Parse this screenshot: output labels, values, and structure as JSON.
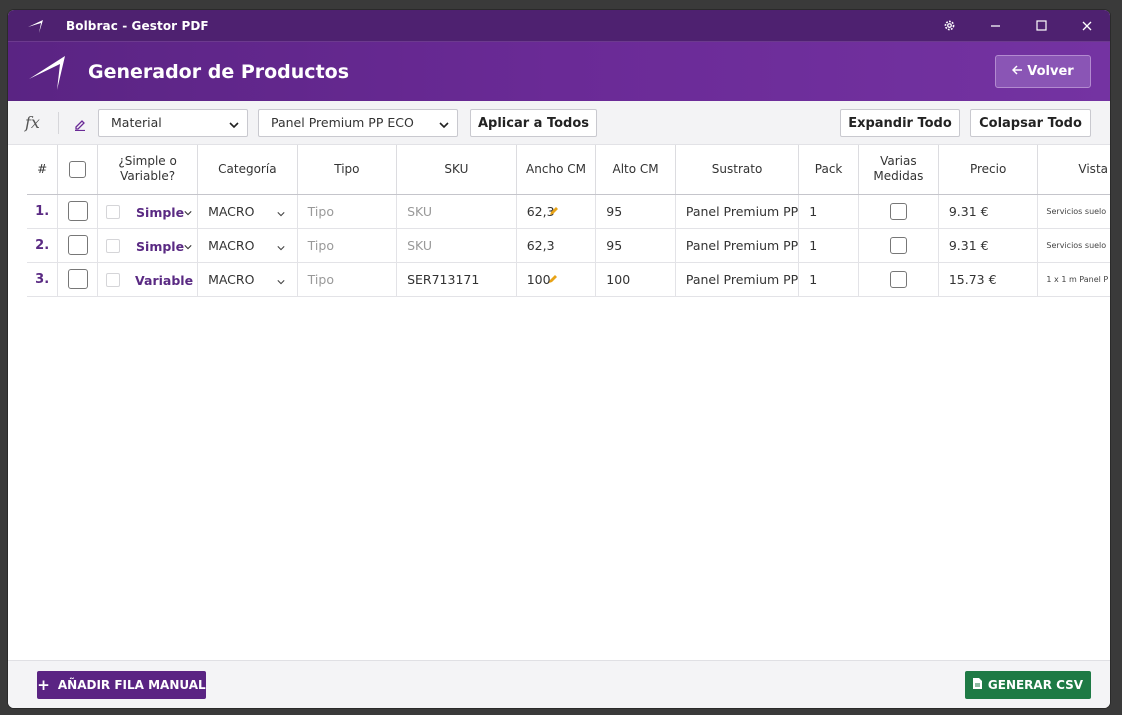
{
  "window": {
    "title": "Bolbrac - Gestor PDF"
  },
  "header": {
    "title": "Generador de Productos",
    "back_label": "Volver"
  },
  "toolbar": {
    "fx_label": "fx",
    "field_select": "Material",
    "value_select": "Panel Premium PP ECO",
    "apply_all": "Aplicar a Todos",
    "expand_all": "Expandir Todo",
    "collapse_all": "Colapsar Todo"
  },
  "table": {
    "columns": [
      "#",
      "",
      "¿Simple o Variable?",
      "Categoría",
      "Tipo",
      "SKU",
      "Ancho CM",
      "Alto CM",
      "Sustrato",
      "Pack",
      "Varias Medidas",
      "Precio",
      "Vista"
    ],
    "rows": [
      {
        "num": "1.",
        "type": "Simple",
        "category": "MACRO",
        "tipo": "Tipo",
        "sku": "SKU",
        "ancho": "62,3",
        "alto": "95",
        "sustrato": "Panel Premium PP",
        "pack": "1",
        "precio": "9.31 €",
        "vista": "Servicios suelo"
      },
      {
        "num": "2.",
        "type": "Simple",
        "category": "MACRO",
        "tipo": "Tipo",
        "sku": "SKU",
        "ancho": "62,3",
        "alto": "95",
        "sustrato": "Panel Premium PP",
        "pack": "1",
        "precio": "9.31 €",
        "vista": "Servicios suelo"
      },
      {
        "num": "3.",
        "type": "Variable",
        "category": "MACRO",
        "tipo": "Tipo",
        "sku": "SER713171",
        "ancho": "100",
        "alto": "100",
        "sustrato": "Panel Premium PP",
        "pack": "1",
        "precio": "15.73 €",
        "vista": "1 x 1 m Panel P"
      }
    ]
  },
  "footer": {
    "add_row": "AÑADIR FILA MANUAL",
    "generate_csv": "GENERAR CSV"
  },
  "colors": {
    "titlebar": "#4e2170",
    "header": "#6a2a96",
    "accent": "#5a2483",
    "csv": "#1e7a45",
    "pencil": "#e8a317"
  }
}
